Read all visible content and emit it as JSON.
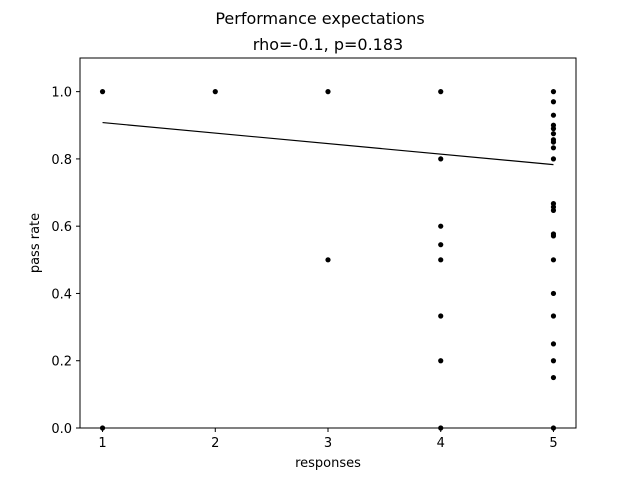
{
  "chart_data": {
    "type": "scatter",
    "title": "Performance expectations",
    "subtitle": "rho=-0.1, p=0.183",
    "xlabel": "responses",
    "ylabel": "pass rate",
    "xlim": [
      0.8,
      5.2
    ],
    "ylim": [
      0.0,
      1.1
    ],
    "x_ticks": [
      1,
      2,
      3,
      4,
      5
    ],
    "y_ticks": [
      0.0,
      0.2,
      0.4,
      0.6,
      0.8,
      1.0
    ],
    "grid": false,
    "legend": null,
    "colors": {
      "points": "#000000",
      "line": "#000000",
      "axes": "#000000"
    },
    "points": [
      {
        "x": 1,
        "y": 1.0
      },
      {
        "x": 1,
        "y": 0.0
      },
      {
        "x": 2,
        "y": 1.0
      },
      {
        "x": 3,
        "y": 1.0
      },
      {
        "x": 3,
        "y": 0.5
      },
      {
        "x": 4,
        "y": 1.0
      },
      {
        "x": 4,
        "y": 0.8
      },
      {
        "x": 4,
        "y": 0.6
      },
      {
        "x": 4,
        "y": 0.545
      },
      {
        "x": 4,
        "y": 0.5
      },
      {
        "x": 4,
        "y": 0.333
      },
      {
        "x": 4,
        "y": 0.2
      },
      {
        "x": 4,
        "y": 0.0
      },
      {
        "x": 5,
        "y": 1.0
      },
      {
        "x": 5,
        "y": 0.97
      },
      {
        "x": 5,
        "y": 0.93
      },
      {
        "x": 5,
        "y": 0.9
      },
      {
        "x": 5,
        "y": 0.89
      },
      {
        "x": 5,
        "y": 0.875
      },
      {
        "x": 5,
        "y": 0.857
      },
      {
        "x": 5,
        "y": 0.85
      },
      {
        "x": 5,
        "y": 0.833
      },
      {
        "x": 5,
        "y": 0.8
      },
      {
        "x": 5,
        "y": 0.667
      },
      {
        "x": 5,
        "y": 0.657
      },
      {
        "x": 5,
        "y": 0.647
      },
      {
        "x": 5,
        "y": 0.577
      },
      {
        "x": 5,
        "y": 0.571
      },
      {
        "x": 5,
        "y": 0.5
      },
      {
        "x": 5,
        "y": 0.4
      },
      {
        "x": 5,
        "y": 0.333
      },
      {
        "x": 5,
        "y": 0.25
      },
      {
        "x": 5,
        "y": 0.2
      },
      {
        "x": 5,
        "y": 0.15
      },
      {
        "x": 5,
        "y": 0.0
      }
    ],
    "trendline": {
      "x": [
        1,
        5
      ],
      "y": [
        0.908,
        0.783
      ]
    }
  }
}
